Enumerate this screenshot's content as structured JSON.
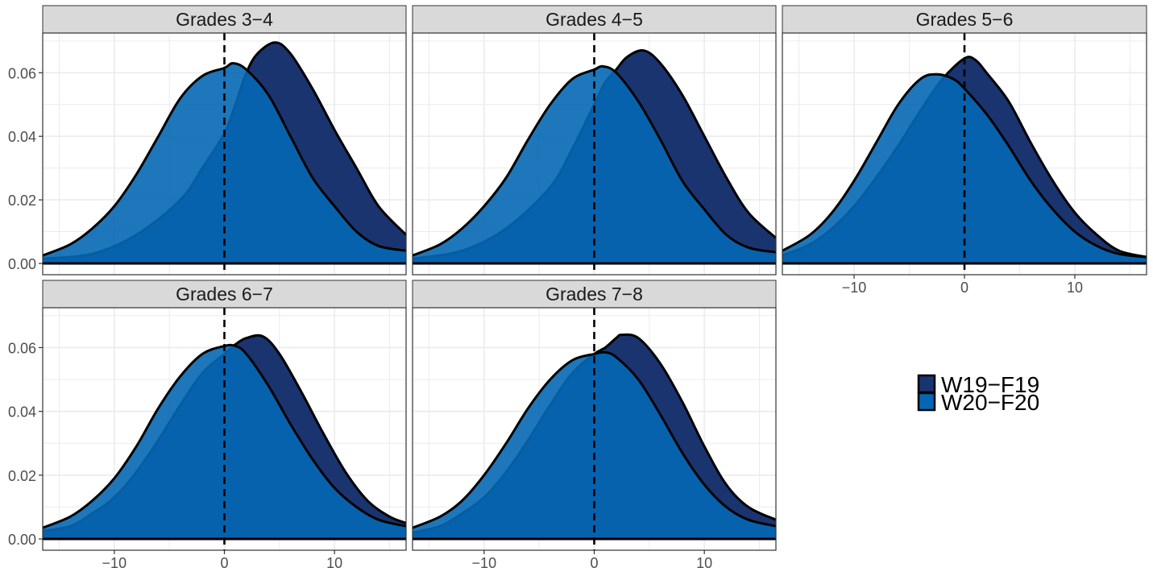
{
  "colors": {
    "W19-F19": "#1a3470",
    "W20-F20": "#0567b4",
    "strip_bg": "#d9d9d9",
    "grid": "#ebebeb",
    "axis_text": "#4d4d4d"
  },
  "legend": {
    "placement": "right",
    "entries": [
      {
        "label": "W19−F19",
        "color": "#1a3470"
      },
      {
        "label": "W20−F20",
        "color": "#0567b4"
      }
    ]
  },
  "axes": {
    "x_ticks": [
      {
        "value": -10,
        "label": "−10"
      },
      {
        "value": 0,
        "label": "0"
      },
      {
        "value": 10,
        "label": "10"
      }
    ],
    "y_ticks": [
      {
        "value": 0,
        "label": "0.00"
      },
      {
        "value": 0.02,
        "label": "0.02"
      },
      {
        "value": 0.04,
        "label": "0.04"
      },
      {
        "value": 0.06,
        "label": "0.06"
      }
    ]
  },
  "chart_data": {
    "type": "area",
    "subtype": "density",
    "grid": true,
    "xlim": [
      -16.5,
      16.5
    ],
    "ylim": [
      0,
      0.072
    ],
    "reference_line": {
      "x": 0,
      "style": "dashed"
    },
    "panels": [
      {
        "title": "Grades 3−4",
        "series": [
          {
            "name": "W19−F19",
            "points": [
              [
                -16.5,
                0.0015
              ],
              [
                -12,
                0.003
              ],
              [
                -8,
                0.009
              ],
              [
                -4,
                0.02
              ],
              [
                -2,
                0.03
              ],
              [
                0,
                0.041
              ],
              [
                1,
                0.05
              ],
              [
                2,
                0.06
              ],
              [
                3,
                0.066
              ],
              [
                4.6,
                0.0695
              ],
              [
                6,
                0.066
              ],
              [
                8,
                0.055
              ],
              [
                10,
                0.042
              ],
              [
                12,
                0.03
              ],
              [
                14,
                0.018
              ],
              [
                16.5,
                0.009
              ]
            ]
          },
          {
            "name": "W20−F20",
            "points": [
              [
                -16.5,
                0.0025
              ],
              [
                -14,
                0.006
              ],
              [
                -12,
                0.011
              ],
              [
                -10,
                0.018
              ],
              [
                -8,
                0.028
              ],
              [
                -6,
                0.04
              ],
              [
                -4,
                0.052
              ],
              [
                -2,
                0.059
              ],
              [
                0,
                0.0615
              ],
              [
                0.8,
                0.063
              ],
              [
                2,
                0.061
              ],
              [
                4,
                0.053
              ],
              [
                6,
                0.04
              ],
              [
                8,
                0.027
              ],
              [
                10,
                0.018
              ],
              [
                12,
                0.01
              ],
              [
                14,
                0.0055
              ],
              [
                16.5,
                0.004
              ]
            ]
          }
        ]
      },
      {
        "title": "Grades 4−5",
        "series": [
          {
            "name": "W19−F19",
            "points": [
              [
                -16.5,
                0.0015
              ],
              [
                -12,
                0.004
              ],
              [
                -8,
                0.011
              ],
              [
                -4,
                0.024
              ],
              [
                -2,
                0.036
              ],
              [
                0,
                0.05
              ],
              [
                1,
                0.057
              ],
              [
                2,
                0.061
              ],
              [
                3,
                0.065
              ],
              [
                4.5,
                0.067
              ],
              [
                6,
                0.063
              ],
              [
                8,
                0.053
              ],
              [
                10,
                0.04
              ],
              [
                12,
                0.027
              ],
              [
                14,
                0.016
              ],
              [
                16.5,
                0.008
              ]
            ]
          },
          {
            "name": "W20−F20",
            "points": [
              [
                -16.5,
                0.0025
              ],
              [
                -14,
                0.006
              ],
              [
                -12,
                0.011
              ],
              [
                -10,
                0.018
              ],
              [
                -8,
                0.027
              ],
              [
                -6,
                0.039
              ],
              [
                -4,
                0.05
              ],
              [
                -2,
                0.058
              ],
              [
                0,
                0.061
              ],
              [
                0.8,
                0.062
              ],
              [
                2,
                0.06
              ],
              [
                4,
                0.051
              ],
              [
                6,
                0.039
              ],
              [
                8,
                0.026
              ],
              [
                10,
                0.017
              ],
              [
                12,
                0.009
              ],
              [
                14,
                0.005
              ],
              [
                16.5,
                0.0035
              ]
            ]
          }
        ]
      },
      {
        "title": "Grades 5−6",
        "series": [
          {
            "name": "W19−F19",
            "points": [
              [
                -16.5,
                0.0025
              ],
              [
                -14,
                0.006
              ],
              [
                -12,
                0.011
              ],
              [
                -10,
                0.018
              ],
              [
                -8,
                0.027
              ],
              [
                -6,
                0.037
              ],
              [
                -4,
                0.048
              ],
              [
                -2,
                0.058
              ],
              [
                0,
                0.0645
              ],
              [
                1,
                0.064
              ],
              [
                2,
                0.06
              ],
              [
                4,
                0.051
              ],
              [
                6,
                0.038
              ],
              [
                8,
                0.026
              ],
              [
                10,
                0.016
              ],
              [
                12,
                0.009
              ],
              [
                14,
                0.004
              ],
              [
                16.5,
                0.002
              ]
            ]
          },
          {
            "name": "W20−F20",
            "points": [
              [
                -16.5,
                0.004
              ],
              [
                -14,
                0.009
              ],
              [
                -12,
                0.016
              ],
              [
                -10,
                0.026
              ],
              [
                -8,
                0.038
              ],
              [
                -6,
                0.05
              ],
              [
                -4,
                0.058
              ],
              [
                -2.5,
                0.0595
              ],
              [
                -1,
                0.058
              ],
              [
                0,
                0.055
              ],
              [
                2,
                0.047
              ],
              [
                4,
                0.037
              ],
              [
                6,
                0.026
              ],
              [
                8,
                0.017
              ],
              [
                10,
                0.01
              ],
              [
                12,
                0.0055
              ],
              [
                14,
                0.003
              ],
              [
                16.5,
                0.002
              ]
            ]
          }
        ]
      },
      {
        "title": "Grades 6−7",
        "series": [
          {
            "name": "W19−F19",
            "points": [
              [
                -16.5,
                0.0025
              ],
              [
                -14,
                0.004
              ],
              [
                -12,
                0.008
              ],
              [
                -10,
                0.013
              ],
              [
                -8,
                0.021
              ],
              [
                -6,
                0.031
              ],
              [
                -4,
                0.042
              ],
              [
                -2,
                0.052
              ],
              [
                0,
                0.058
              ],
              [
                1,
                0.061
              ],
              [
                2,
                0.063
              ],
              [
                3.5,
                0.0635
              ],
              [
                5,
                0.058
              ],
              [
                7,
                0.046
              ],
              [
                9,
                0.033
              ],
              [
                11,
                0.021
              ],
              [
                13,
                0.012
              ],
              [
                15,
                0.007
              ],
              [
                16.5,
                0.005
              ]
            ]
          },
          {
            "name": "W20−F20",
            "points": [
              [
                -16.5,
                0.0035
              ],
              [
                -14,
                0.007
              ],
              [
                -12,
                0.012
              ],
              [
                -10,
                0.019
              ],
              [
                -8,
                0.029
              ],
              [
                -6,
                0.041
              ],
              [
                -4,
                0.051
              ],
              [
                -2,
                0.058
              ],
              [
                0,
                0.0605
              ],
              [
                1,
                0.0605
              ],
              [
                2,
                0.058
              ],
              [
                4,
                0.048
              ],
              [
                6,
                0.036
              ],
              [
                8,
                0.025
              ],
              [
                10,
                0.016
              ],
              [
                12,
                0.01
              ],
              [
                14,
                0.006
              ],
              [
                16.5,
                0.004
              ]
            ]
          }
        ]
      },
      {
        "title": "Grades 7−8",
        "series": [
          {
            "name": "W19−F19",
            "points": [
              [
                -16.5,
                0.002
              ],
              [
                -14,
                0.004
              ],
              [
                -12,
                0.008
              ],
              [
                -10,
                0.013
              ],
              [
                -8,
                0.021
              ],
              [
                -6,
                0.031
              ],
              [
                -4,
                0.042
              ],
              [
                -2,
                0.052
              ],
              [
                0,
                0.058
              ],
              [
                1,
                0.06
              ],
              [
                2,
                0.063
              ],
              [
                2.5,
                0.064
              ],
              [
                4,
                0.063
              ],
              [
                6,
                0.055
              ],
              [
                8,
                0.043
              ],
              [
                10,
                0.029
              ],
              [
                12,
                0.017
              ],
              [
                14,
                0.01
              ],
              [
                16.5,
                0.006
              ]
            ]
          },
          {
            "name": "W20−F20",
            "points": [
              [
                -16.5,
                0.0035
              ],
              [
                -14,
                0.007
              ],
              [
                -12,
                0.012
              ],
              [
                -10,
                0.02
              ],
              [
                -8,
                0.03
              ],
              [
                -6,
                0.041
              ],
              [
                -4,
                0.05
              ],
              [
                -2,
                0.056
              ],
              [
                0,
                0.058
              ],
              [
                1,
                0.0585
              ],
              [
                2,
                0.057
              ],
              [
                4,
                0.05
              ],
              [
                6,
                0.039
              ],
              [
                8,
                0.027
              ],
              [
                10,
                0.017
              ],
              [
                12,
                0.01
              ],
              [
                14,
                0.006
              ],
              [
                16.5,
                0.004
              ]
            ]
          }
        ]
      }
    ]
  }
}
